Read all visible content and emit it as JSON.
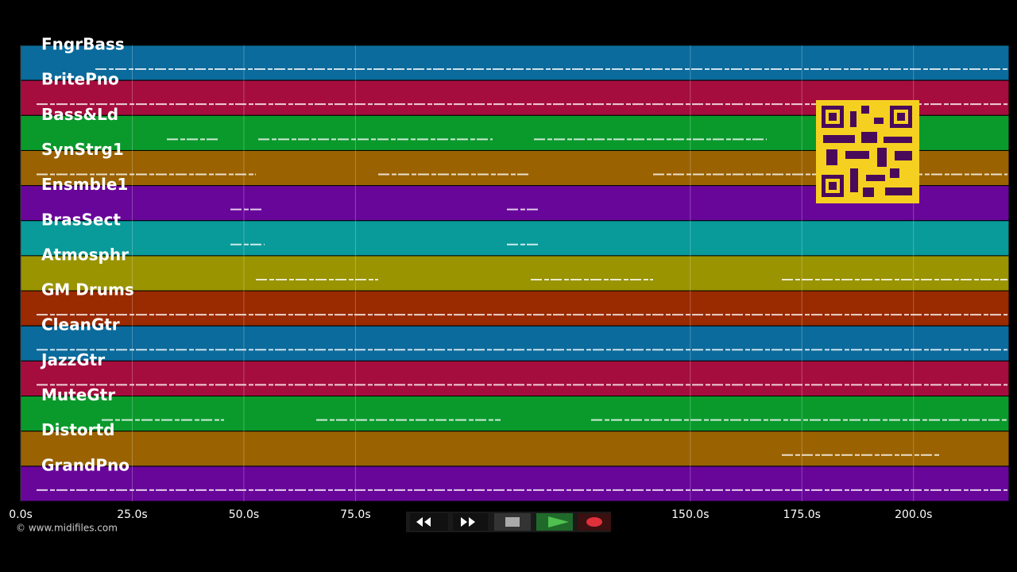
{
  "tracks": [
    {
      "name": "FngrBass",
      "color": "#0b6b9c"
    },
    {
      "name": "BritePno",
      "color": "#a50d3e"
    },
    {
      "name": "Bass&Ld",
      "color": "#0a9a2c"
    },
    {
      "name": "SynStrg1",
      "color": "#9a6200"
    },
    {
      "name": "Ensmble1",
      "color": "#68069a"
    },
    {
      "name": "BrasSect",
      "color": "#099a9a"
    },
    {
      "name": "Atmosphr",
      "color": "#9a9400"
    },
    {
      "name": "GM Drums",
      "color": "#9a2a00"
    },
    {
      "name": "CleanGtr",
      "color": "#0b6b9c"
    },
    {
      "name": "JazzGtr",
      "color": "#a50d3e"
    },
    {
      "name": "MuteGtr",
      "color": "#0a9a2c"
    },
    {
      "name": "Distortd",
      "color": "#9a6200"
    },
    {
      "name": "GrandPno",
      "color": "#68069a"
    }
  ],
  "timeline": {
    "xlim": [
      0,
      221.4
    ],
    "ticks": [
      {
        "value": 0,
        "label": "0.0s"
      },
      {
        "value": 25,
        "label": "25.0s"
      },
      {
        "value": 50,
        "label": "50.0s"
      },
      {
        "value": 75,
        "label": "75.0s"
      },
      {
        "value": 150,
        "label": "150.0s"
      },
      {
        "value": 175,
        "label": "175.0s"
      },
      {
        "value": 200,
        "label": "200.0s"
      }
    ]
  },
  "footer": {
    "credit": "© www.midifiles.com"
  }
}
